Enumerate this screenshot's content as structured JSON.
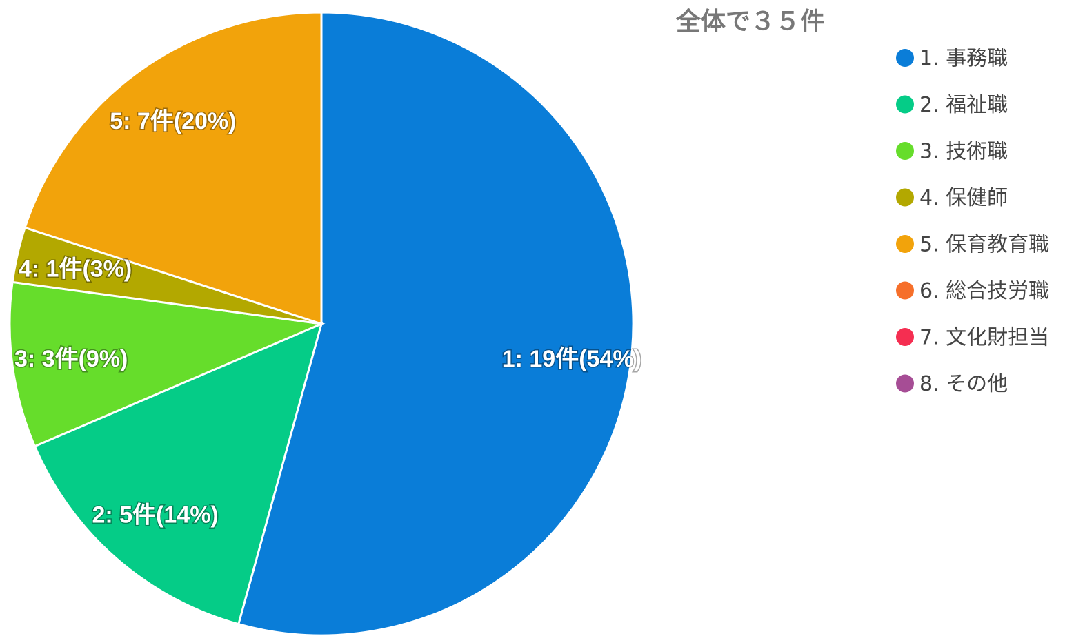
{
  "chart_data": {
    "type": "pie",
    "title": "全体で３５件",
    "categories": [
      "1. 事務職",
      "2. 福祉職",
      "3. 技術職",
      "4. 保健師",
      "5. 保育教育職",
      "6. 総合技労職",
      "7. 文化財担当",
      "8. その他"
    ],
    "values": [
      19,
      5,
      3,
      1,
      7,
      0,
      0,
      0
    ],
    "value_labels": [
      "1: 19件(54%)",
      "2: 5件(14%)",
      "3: 3件(9%)",
      "4: 1件(3%)",
      "5: 7件(20%)",
      null,
      null,
      null
    ],
    "colors": [
      "#0a7dd8",
      "#05cc87",
      "#66dd2b",
      "#b3a800",
      "#f2a30b",
      "#f66f2a",
      "#f52e51",
      "#a64d95"
    ],
    "legend": "right"
  }
}
